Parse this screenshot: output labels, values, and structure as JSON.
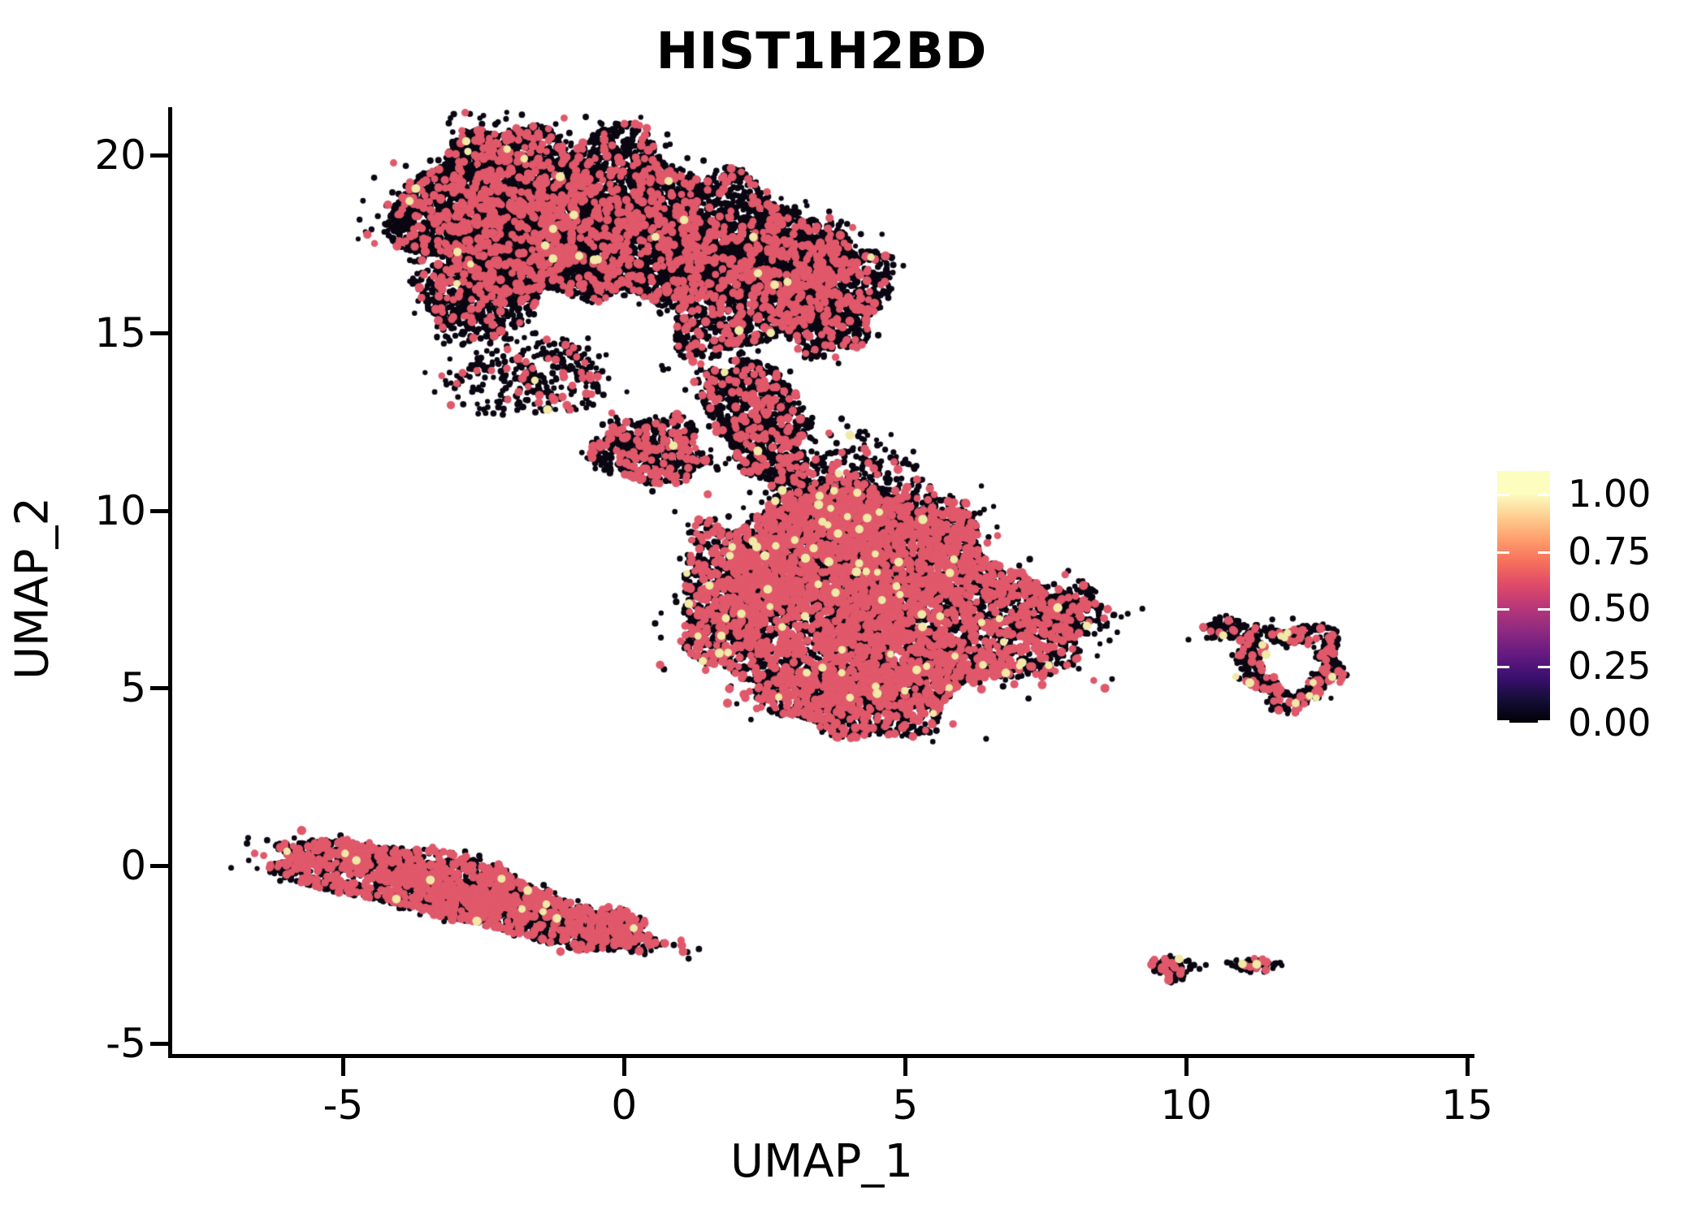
{
  "chart_data": {
    "type": "scatter",
    "title": "HIST1H2BD",
    "xlabel": "UMAP_1",
    "ylabel": "UMAP_2",
    "xlim": [
      -8.07,
      15.1
    ],
    "ylim": [
      -5.35,
      21.35
    ],
    "x_ticks": [
      -5,
      0,
      5,
      10,
      15
    ],
    "y_ticks": [
      -5,
      0,
      5,
      10,
      15,
      20
    ],
    "grid": false,
    "colorbar": {
      "position": "right",
      "tick_labels": [
        "1.00",
        "0.75",
        "0.50",
        "0.25",
        "0.00"
      ],
      "tick_values": [
        1.0,
        0.75,
        0.5,
        0.25,
        0.0
      ],
      "value_range": [
        0,
        1.1
      ],
      "colormap": "magma",
      "gradient_stops": [
        "#000004",
        "#140E36",
        "#3B0F70",
        "#641A80",
        "#8C2981",
        "#B73779",
        "#DE4968",
        "#F7705C",
        "#FE9F6D",
        "#FECF92",
        "#FCFDBF"
      ]
    },
    "point_colors": {
      "zero": "#0a0612",
      "mid": "#e0586a",
      "high": "#f1e9a6"
    },
    "point_radii": {
      "zero": 3.6,
      "mid": 5.0,
      "high": 5.0
    },
    "clusters": [
      {
        "name": "top-left-lobe",
        "cx": -2.29,
        "cy": 18.41,
        "rx": 1.62,
        "ry": 2.32,
        "rot": 0,
        "n": 4000,
        "mid_frac": 0.13,
        "high_frac": 0.003
      },
      {
        "name": "top-mid-lobe",
        "cx": -0.13,
        "cy": 18.07,
        "rx": 1.66,
        "ry": 2.39,
        "rot": 0,
        "n": 3400,
        "mid_frac": 0.13,
        "high_frac": 0.002
      },
      {
        "name": "top-right-lobe",
        "cx": 2.18,
        "cy": 16.82,
        "rx": 1.66,
        "ry": 2.39,
        "rot": 0,
        "n": 3000,
        "mid_frac": 0.14,
        "high_frac": 0.002
      },
      {
        "name": "top-far-right-lobe",
        "cx": 3.62,
        "cy": 16.14,
        "rx": 1.08,
        "ry": 1.7,
        "rot": 0,
        "n": 1300,
        "mid_frac": 0.15,
        "high_frac": 0.002
      },
      {
        "name": "top-lower-fringe",
        "cx": -2.58,
        "cy": 16.02,
        "rx": 1.13,
        "ry": 1.25,
        "rot": 0,
        "n": 700,
        "mid_frac": 0.12,
        "high_frac": 0.004
      },
      {
        "name": "top-trail",
        "cx": -1.64,
        "cy": 13.75,
        "rx": 1.37,
        "ry": 1.09,
        "rot": 0,
        "n": 330,
        "mid_frac": 0.12,
        "high_frac": 0.004,
        "scatter": 0.28
      },
      {
        "name": "bridge-clump",
        "cx": 0.45,
        "cy": 11.7,
        "rx": 1.04,
        "ry": 0.95,
        "rot": 0,
        "n": 650,
        "mid_frac": 0.18,
        "high_frac": 0.004
      },
      {
        "name": "neck",
        "cx": 2.4,
        "cy": 12.5,
        "rx": 0.78,
        "ry": 2.05,
        "rot": -30,
        "n": 1100,
        "mid_frac": 0.15,
        "high_frac": 0.002
      },
      {
        "name": "neck-scatter",
        "cx": 3.98,
        "cy": 10.91,
        "rx": 1.37,
        "ry": 1.14,
        "rot": 0,
        "n": 300,
        "mid_frac": 0.15,
        "high_frac": 0.003,
        "scatter": 0.3
      },
      {
        "name": "middle-main",
        "cx": 4.49,
        "cy": 7.39,
        "rx": 3.1,
        "ry": 3.07,
        "rot": 5,
        "n": 6500,
        "mid_frac": 0.31,
        "high_frac": 0.008
      },
      {
        "name": "middle-top-bump",
        "cx": 4.13,
        "cy": 9.43,
        "rx": 1.73,
        "ry": 1.25,
        "rot": 0,
        "n": 1200,
        "mid_frac": 0.28,
        "high_frac": 0.005
      },
      {
        "name": "middle-left-bump",
        "cx": 1.96,
        "cy": 7.95,
        "rx": 1.01,
        "ry": 1.7,
        "rot": 0,
        "n": 900,
        "mid_frac": 0.28,
        "high_frac": 0.005
      },
      {
        "name": "middle-bottom-bump",
        "cx": 4.2,
        "cy": 4.66,
        "rx": 1.73,
        "ry": 1.02,
        "rot": 0,
        "n": 1000,
        "mid_frac": 0.3,
        "high_frac": 0.01
      },
      {
        "name": "middle-right-tail",
        "cx": 7.81,
        "cy": 7.16,
        "rx": 0.87,
        "ry": 0.8,
        "rot": 0,
        "n": 280,
        "mid_frac": 0.2,
        "high_frac": 0.004,
        "scatter": 0.18
      },
      {
        "name": "right-ring",
        "cx": 11.85,
        "cy": 5.68,
        "rx": 0.9,
        "ry": 1.18,
        "rot": 0,
        "n": 620,
        "mid_frac": 0.17,
        "high_frac": 0.02,
        "hole": 0.5
      },
      {
        "name": "right-arm",
        "cx": 10.72,
        "cy": 6.66,
        "rx": 0.4,
        "ry": 0.36,
        "rot": 0,
        "n": 80,
        "mid_frac": 0.15,
        "high_frac": 0.01
      },
      {
        "name": "bottom-band",
        "cx": -3.06,
        "cy": -0.73,
        "rx": 3.39,
        "ry": 0.86,
        "rot": 14,
        "n": 2600,
        "mid_frac": 0.33,
        "high_frac": 0.005
      },
      {
        "name": "bottom-band-tip",
        "cx": -0.2,
        "cy": -1.77,
        "rx": 0.65,
        "ry": 0.57,
        "rot": 14,
        "n": 280,
        "mid_frac": 0.35,
        "high_frac": 0.005
      },
      {
        "name": "tiny-left-clump",
        "cx": 9.73,
        "cy": -2.89,
        "rx": 0.4,
        "ry": 0.36,
        "rot": 0,
        "n": 90,
        "mid_frac": 0.22,
        "high_frac": 0.05
      },
      {
        "name": "tiny-right-clump",
        "cx": 11.2,
        "cy": -2.8,
        "rx": 0.48,
        "ry": 0.2,
        "rot": 0,
        "n": 70,
        "mid_frac": 0.2,
        "high_frac": 0.03
      }
    ],
    "outlier_points": [
      {
        "x": 6.44,
        "y": 3.57
      },
      {
        "x": 8.96,
        "y": 7.09
      },
      {
        "x": 9.22,
        "y": 7.23
      },
      {
        "x": 10.39,
        "y": 6.75
      },
      {
        "x": 10.04,
        "y": 6.36
      },
      {
        "x": 10.35,
        "y": -2.8
      }
    ]
  }
}
